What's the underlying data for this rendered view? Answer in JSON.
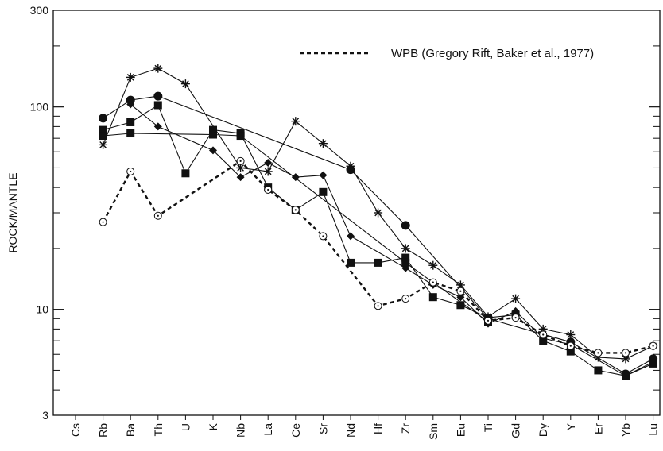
{
  "chart_data": {
    "type": "line",
    "y_scale": "log",
    "ylabel": "ROCK/MANTLE",
    "xlabel": "",
    "ylim": [
      3,
      300
    ],
    "yticks": [
      3,
      10,
      100,
      300
    ],
    "categories": [
      "Cs",
      "Rb",
      "Ba",
      "Th",
      "U",
      "K",
      "Nb",
      "La",
      "Ce",
      "Sr",
      "Nd",
      "Hf",
      "Zr",
      "Sm",
      "Eu",
      "Ti",
      "Gd",
      "Dy",
      "Y",
      "Er",
      "Yb",
      "Lu"
    ],
    "legend": {
      "position": "top-right",
      "entries": [
        {
          "label": "WPB (Gregory Rift, Baker et al., 1977)",
          "style": "dashed"
        }
      ]
    },
    "series": [
      {
        "marker": "asterisk",
        "line": "solid",
        "values": [
          null,
          65,
          140,
          155,
          130,
          null,
          50,
          48,
          85,
          66,
          51,
          30,
          20,
          16.5,
          13.2,
          9.2,
          11.3,
          8,
          7.5,
          5.8,
          5.7,
          6.6
        ]
      },
      {
        "marker": "circle-filled",
        "line": "solid",
        "values": [
          null,
          88,
          108,
          113,
          null,
          null,
          null,
          null,
          null,
          null,
          49,
          null,
          26,
          null,
          null,
          9.0,
          null,
          null,
          6.9,
          null,
          4.8,
          5.7
        ]
      },
      {
        "marker": "diamond-filled",
        "line": "solid",
        "values": [
          null,
          null,
          103,
          80,
          null,
          61,
          45,
          53,
          45,
          46,
          23,
          null,
          16,
          13.2,
          11.5,
          8.5,
          9.8,
          7.2,
          6.7,
          null,
          4.7,
          5.5
        ]
      },
      {
        "marker": "square-filled",
        "line": "solid",
        "values": [
          null,
          77,
          84,
          102,
          47,
          77,
          74,
          40,
          31,
          38,
          17,
          17,
          18,
          11.5,
          10.5,
          9.1,
          9.4,
          7,
          6.2,
          5,
          4.7,
          5.4
        ]
      },
      {
        "marker": "square-filled",
        "line": "solid",
        "values": [
          null,
          72,
          74,
          null,
          null,
          73,
          72,
          null,
          null,
          null,
          null,
          null,
          17,
          null,
          null,
          8.7,
          null,
          null,
          null,
          null,
          null,
          null
        ]
      },
      {
        "name": "WPB (Gregory Rift, Baker et al., 1977)",
        "marker": "circle-dot-open",
        "line": "dashed",
        "values": [
          null,
          27,
          48,
          29,
          null,
          null,
          54,
          39,
          31,
          23,
          null,
          10.4,
          11.3,
          13.6,
          12.3,
          8.8,
          9.1,
          7.5,
          6.6,
          6.1,
          6.1,
          6.6
        ]
      }
    ]
  }
}
